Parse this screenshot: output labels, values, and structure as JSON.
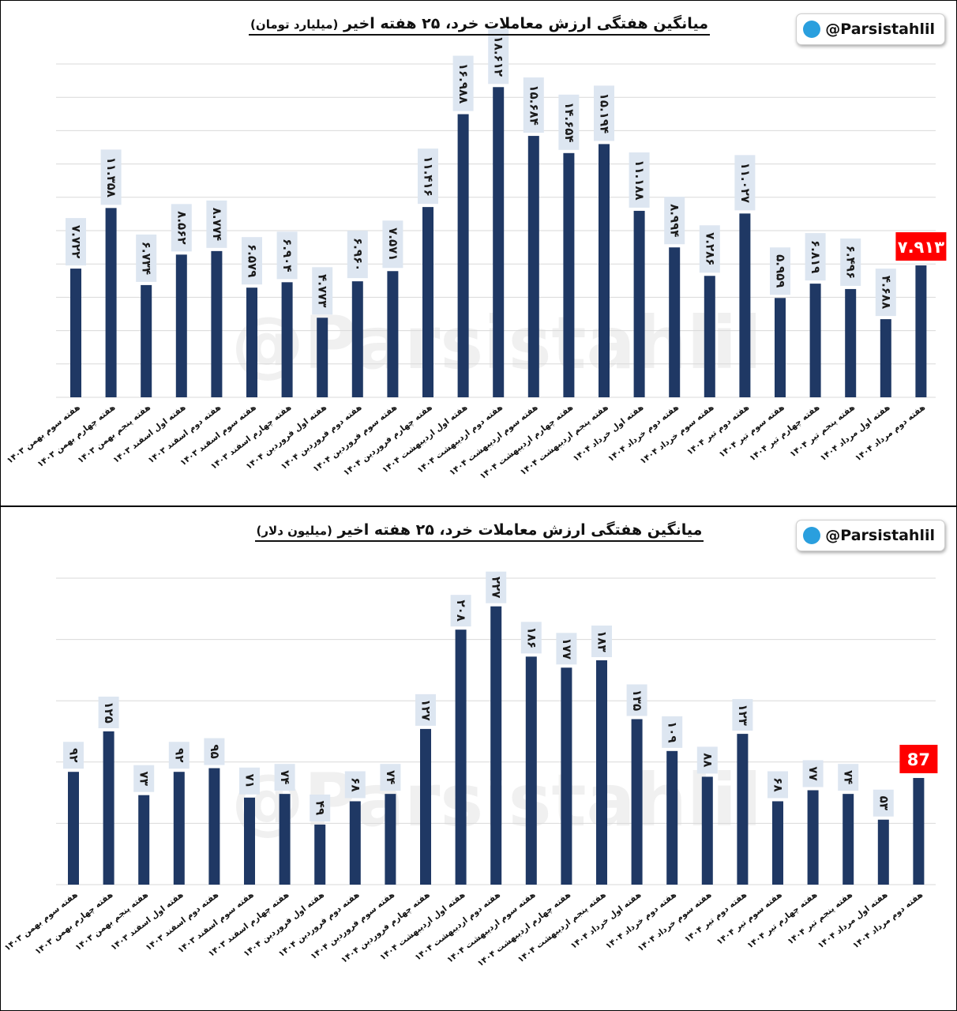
{
  "watermark": "@Parsistahlil",
  "channel_handle": "@Parsistahlil",
  "icons": {
    "badge": "telegram-icon"
  },
  "colors": {
    "bar": "#1f3864",
    "highlight": "#ff0000",
    "label_bg": "#dde6f1",
    "grid": "#d9d9d9"
  },
  "chart_data": [
    {
      "type": "bar",
      "title": "میانگین هفتگی ارزش معاملات خرد، ۲۵ هفته اخیر",
      "unit": "(میلیارد تومان)",
      "ylim": [
        0,
        20
      ],
      "grid": true,
      "categories": [
        "هفته سوم بهمن ۱۴۰۳",
        "هفته چهارم بهمن ۱۴۰۳",
        "هفته پنجم بهمن ۱۴۰۳",
        "هفته اول اسفند ۱۴۰۳",
        "هفته دوم اسفند ۱۴۰۳",
        "هفته سوم اسفند ۱۴۰۳",
        "هفته چهارم اسفند ۱۴۰۳",
        "هفته اول فروردین ۱۴۰۴",
        "هفته دوم فروردین ۱۴۰۴",
        "هفته سوم فروردین ۱۴۰۴",
        "هفته چهارم فروردین ۱۴۰۴",
        "هفته اول اردیبهشت ۱۴۰۴",
        "هفته دوم اردیبهشت ۱۴۰۴",
        "هفته سوم اردیبهشت ۱۴۰۴",
        "هفته چهارم اردیبهشت ۱۴۰۴",
        "هفته پنجم اردیبهشت ۱۴۰۴",
        "هفته اول خرداد ۱۴۰۴",
        "هفته دوم خرداد ۱۴۰۴",
        "هفته سوم خرداد ۱۴۰۴",
        "هفته دوم تیر ۱۴۰۴",
        "هفته سوم تیر ۱۴۰۴",
        "هفته چهارم تیر ۱۴۰۴",
        "هفته پنجم تیر ۱۴۰۴",
        "هفته اول مرداد ۱۴۰۴",
        "هفته دوم مرداد ۱۴۰۴"
      ],
      "values": [
        7.722,
        11.358,
        6.734,
        8.562,
        8.774,
        6.579,
        6.904,
        4.773,
        6.96,
        7.571,
        11.416,
        16.988,
        18.612,
        15.684,
        14.654,
        15.194,
        11.188,
        8.994,
        7.286,
        11.027,
        5.959,
        6.819,
        6.496,
        4.688,
        7.913
      ],
      "labels": [
        "۷.۷۲۲",
        "۱۱.۳۵۸",
        "۶.۷۳۴",
        "۸.۵۶۲",
        "۸.۷۷۴",
        "۶.۵۷۹",
        "۶.۹۰۴",
        "۴.۷۷۳",
        "۶.۹۶۰",
        "۷.۵۷۱",
        "۱۱.۴۱۶",
        "۱۶.۹۸۸",
        "۱۸.۶۱۲",
        "۱۵.۶۸۴",
        "۱۴.۶۵۴",
        "۱۵.۱۹۴",
        "۱۱.۱۸۸",
        "۸.۹۹۴",
        "۷.۲۸۶",
        "۱۱.۰۲۷",
        "۵.۹۵۹",
        "۶.۸۱۹",
        "۶.۴۹۶",
        "۴.۶۸۸",
        "۷.۹۱۳"
      ],
      "highlight_index": 24
    },
    {
      "type": "bar",
      "title": "میانگین هفتگی ارزش معاملات خرد، ۲۵ هفته اخیر",
      "unit": "(میلیون دلار)",
      "ylim": [
        0,
        250
      ],
      "grid": true,
      "categories": [
        "هفته سوم بهمن ۱۴۰۳",
        "هفته چهارم بهمن ۱۴۰۳",
        "هفته پنجم بهمن ۱۴۰۳",
        "هفته اول اسفند ۱۴۰۳",
        "هفته دوم اسفند ۱۴۰۳",
        "هفته سوم اسفند ۱۴۰۳",
        "هفته چهارم اسفند ۱۴۰۳",
        "هفته اول فروردین ۱۴۰۴",
        "هفته دوم فروردین ۱۴۰۴",
        "هفته سوم فروردین ۱۴۰۴",
        "هفته چهارم فروردین ۱۴۰۴",
        "هفته اول اردیبهشت ۱۴۰۴",
        "هفته دوم اردیبهشت ۱۴۰۴",
        "هفته سوم اردیبهشت ۱۴۰۴",
        "هفته چهارم اردیبهشت ۱۴۰۴",
        "هفته پنجم اردیبهشت ۱۴۰۴",
        "هفته اول خرداد ۱۴۰۴",
        "هفته دوم خرداد ۱۴۰۴",
        "هفته سوم خرداد ۱۴۰۴",
        "هفته دوم تیر ۱۴۰۴",
        "هفته سوم تیر ۱۴۰۴",
        "هفته چهارم تیر ۱۴۰۴",
        "هفته پنجم تیر ۱۴۰۴",
        "هفته اول مرداد ۱۴۰۴",
        "هفته دوم مرداد ۱۴۰۴"
      ],
      "values": [
        92,
        125,
        73,
        92,
        95,
        71,
        74,
        49,
        68,
        74,
        127,
        208,
        227,
        186,
        177,
        183,
        135,
        109,
        88,
        123,
        68,
        77,
        74,
        53,
        87
      ],
      "labels": [
        "۹۲",
        "۱۲۵",
        "۷۳",
        "۹۲",
        "۹۵",
        "۷۱",
        "۷۴",
        "۴۹",
        "۶۸",
        "۷۴",
        "۱۲۷",
        "۲۰۸",
        "۲۲۷",
        "۱۸۶",
        "۱۷۷",
        "۱۸۳",
        "۱۳۵",
        "۱۰۹",
        "۸۸",
        "۱۲۳",
        "۶۸",
        "۷۷",
        "۷۴",
        "۵۳",
        "87"
      ],
      "highlight_index": 24
    }
  ]
}
